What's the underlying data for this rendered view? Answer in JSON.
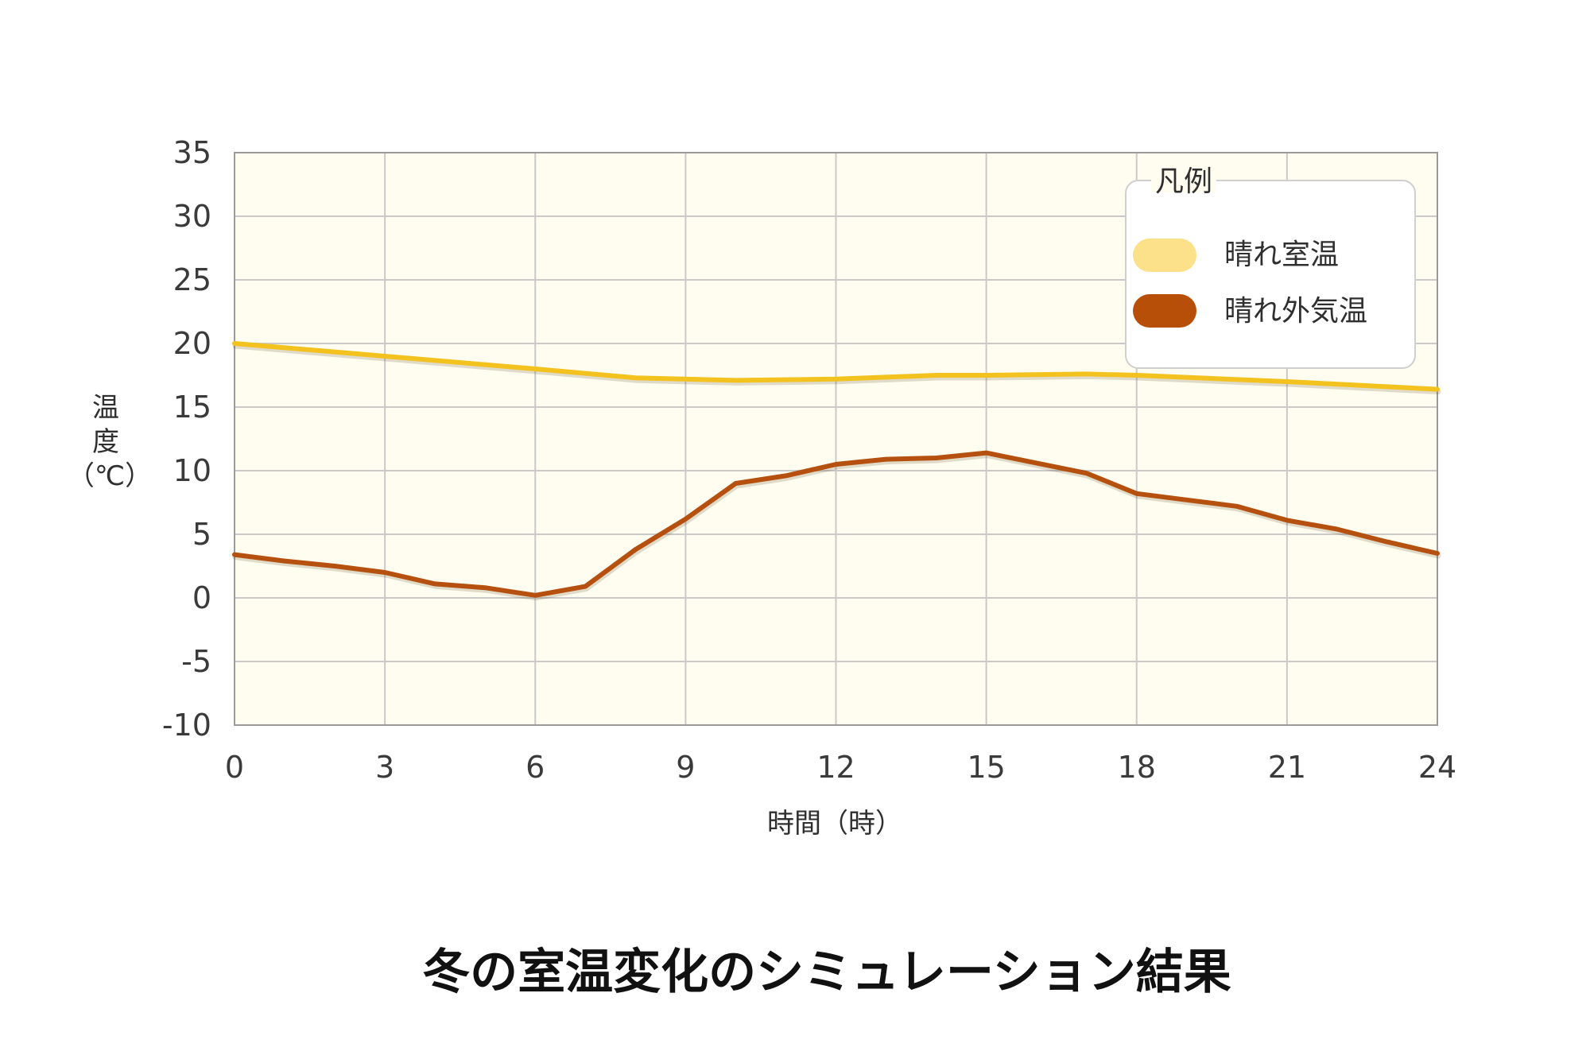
{
  "chart_data": {
    "type": "line",
    "title": "冬の室温変化のシミュレーション結果",
    "xlabel": "時間（時）",
    "ylabel_lines": [
      "温",
      "度",
      "（℃）"
    ],
    "xlim": [
      0,
      24
    ],
    "ylim": [
      -10,
      35
    ],
    "xticks": [
      "0",
      "3",
      "6",
      "9",
      "12",
      "15",
      "18",
      "21",
      "24"
    ],
    "yticks": [
      "35",
      "30",
      "25",
      "20",
      "15",
      "10",
      "5",
      "0",
      "-5",
      "-10"
    ],
    "grid": true,
    "legend": {
      "title": "凡例",
      "placement": "top-right"
    },
    "series": [
      {
        "name": "晴れ室温",
        "color": "#f3c21e",
        "legend_color": "#fde08a",
        "x": [
          0,
          3,
          6,
          8,
          10,
          12,
          14,
          15,
          17,
          18,
          21,
          24
        ],
        "y": [
          20,
          19.0,
          18.0,
          17.3,
          17.1,
          17.2,
          17.5,
          17.5,
          17.6,
          17.5,
          17.0,
          16.4
        ]
      },
      {
        "name": "晴れ外気温",
        "color": "#b5500f",
        "legend_color": "#b84f08",
        "x": [
          0,
          1,
          2,
          3,
          4,
          5,
          6,
          7,
          8,
          9,
          10,
          11,
          12,
          13,
          14,
          15,
          16,
          17,
          18,
          19,
          20,
          21,
          22,
          23,
          24
        ],
        "y": [
          3.4,
          2.9,
          2.5,
          2.0,
          1.1,
          0.8,
          0.2,
          0.9,
          3.8,
          6.2,
          9.0,
          9.6,
          10.5,
          10.9,
          11.0,
          11.4,
          10.6,
          9.8,
          8.2,
          7.7,
          7.2,
          6.1,
          5.4,
          4.4,
          3.5
        ]
      }
    ]
  }
}
